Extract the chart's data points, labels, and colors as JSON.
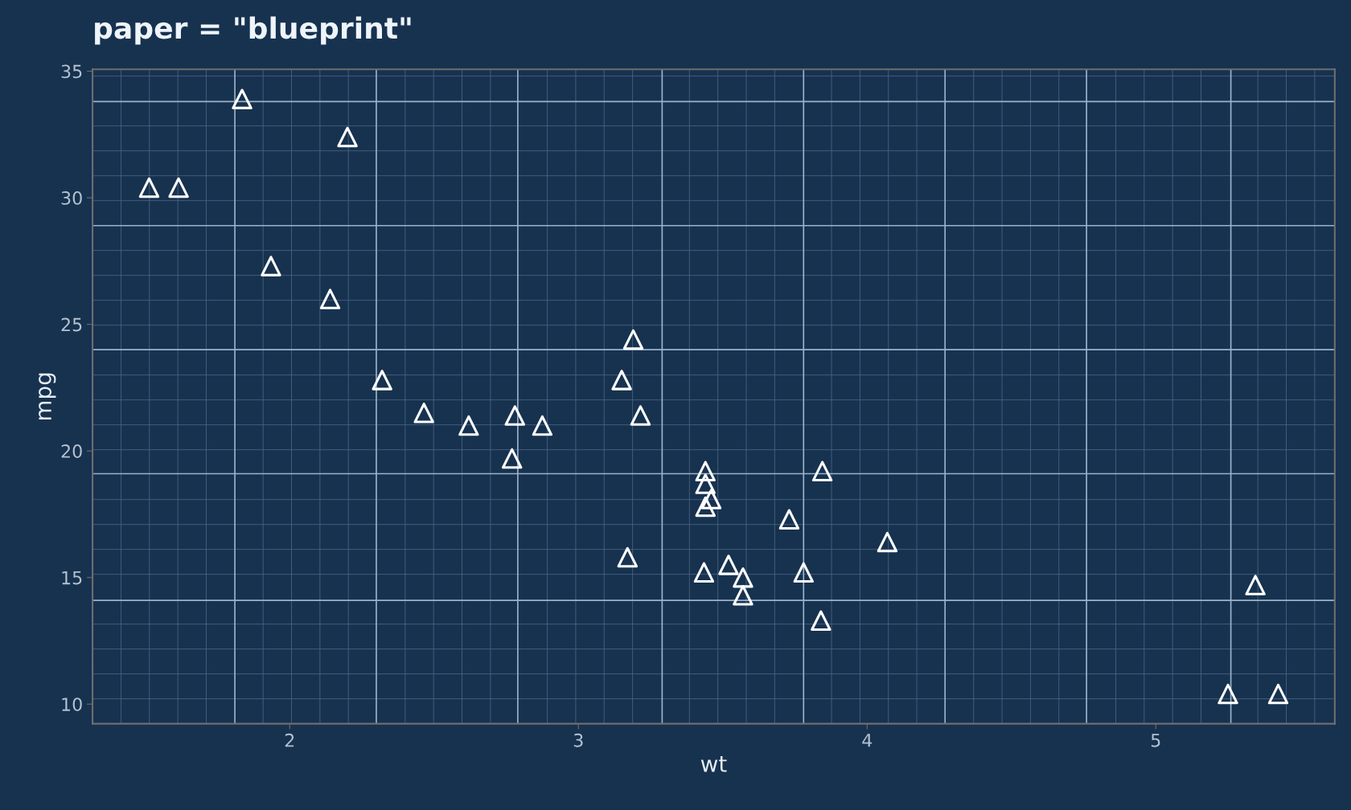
{
  "chart_data": {
    "type": "scatter",
    "title": "paper = \"blueprint\"",
    "xlabel": "wt",
    "ylabel": "mpg",
    "x": [
      2.62,
      2.875,
      2.32,
      3.215,
      3.44,
      3.46,
      3.57,
      3.19,
      3.15,
      3.44,
      3.44,
      4.07,
      3.73,
      3.78,
      5.25,
      5.424,
      5.345,
      2.2,
      1.615,
      1.835,
      2.465,
      3.52,
      3.435,
      3.84,
      3.845,
      1.935,
      2.14,
      1.513,
      3.17,
      2.77,
      3.57,
      2.78
    ],
    "series": [
      {
        "color": "#ffffff",
        "values": [
          21.0,
          21.0,
          22.8,
          21.4,
          18.7,
          18.1,
          14.3,
          24.4,
          22.8,
          19.2,
          17.8,
          16.4,
          17.3,
          15.2,
          10.4,
          10.4,
          14.7,
          32.4,
          30.4,
          33.9,
          21.5,
          15.5,
          15.2,
          13.3,
          19.2,
          27.3,
          26.0,
          30.4,
          15.8,
          19.7,
          15.0,
          21.4
        ]
      }
    ],
    "xlim": [
      1.317,
      5.62
    ],
    "ylim": [
      9.225,
      35.075
    ],
    "xticks": [
      2,
      3,
      4,
      5
    ],
    "yticks": [
      10,
      15,
      20,
      25,
      30,
      35
    ],
    "ref_lines": [
      {
        "axis": "x",
        "value": 1.81,
        "color": "#9bb3cc"
      },
      {
        "axis": "x",
        "value": 2.3,
        "color": "#9bb3cc"
      },
      {
        "axis": "x",
        "value": 2.79,
        "color": "#9bb3cc"
      },
      {
        "axis": "x",
        "value": 3.29,
        "color": "#9bb3cc"
      },
      {
        "axis": "x",
        "value": 3.78,
        "color": "#9bb3cc"
      },
      {
        "axis": "x",
        "value": 4.27,
        "color": "#9bb3cc"
      },
      {
        "axis": "x",
        "value": 4.76,
        "color": "#9bb3cc"
      },
      {
        "axis": "x",
        "value": 5.26,
        "color": "#9bb3cc"
      },
      {
        "axis": "y",
        "value": 14.1,
        "color": "#9bb3cc"
      },
      {
        "axis": "y",
        "value": 19.1,
        "color": "#9bb3cc"
      },
      {
        "axis": "y",
        "value": 24.0,
        "color": "#9bb3cc"
      },
      {
        "axis": "y",
        "value": 28.9,
        "color": "#9bb3cc"
      },
      {
        "axis": "y",
        "value": 33.8,
        "color": "#9bb3cc"
      }
    ],
    "grid": true,
    "marker": "triangle",
    "legend": false
  }
}
